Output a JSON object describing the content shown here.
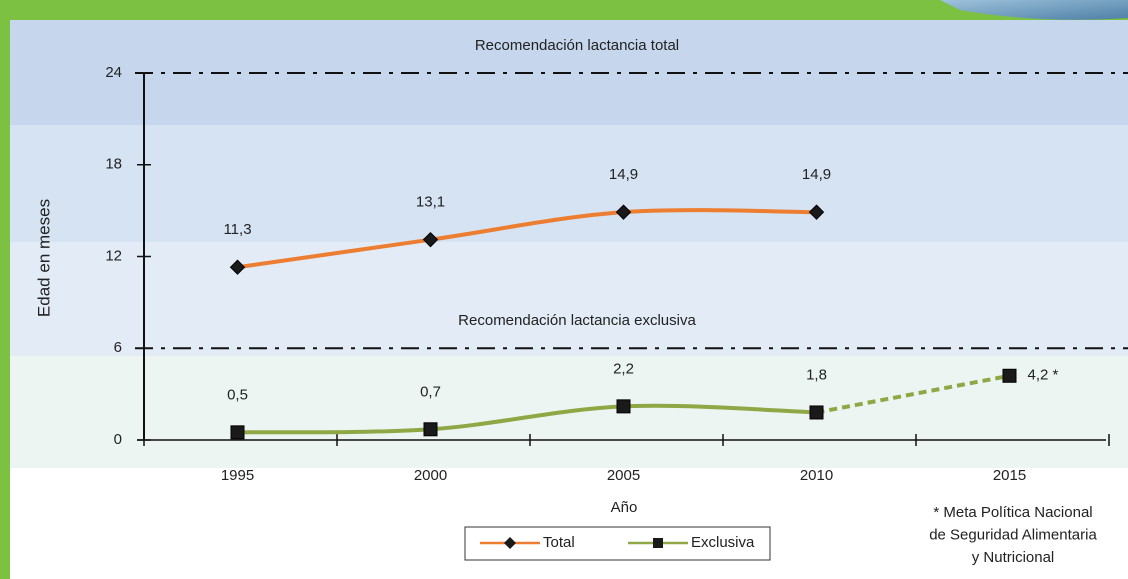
{
  "chart_data": {
    "type": "line",
    "y_label": "Edad en meses",
    "x_label": "Año",
    "categories": [
      "1995",
      "2000",
      "2005",
      "2010",
      "2015"
    ],
    "ylim": [
      0,
      24
    ],
    "yticks": [
      0,
      6,
      12,
      18,
      24
    ],
    "grid": false,
    "reference_lines": [
      {
        "value": 24,
        "label": "Recomendación lactancia total"
      },
      {
        "value": 6,
        "label": "Recomendación lactancia exclusiva"
      }
    ],
    "series": [
      {
        "name": "Total",
        "color": "#ed7d31",
        "marker": "diamond",
        "values": [
          11.3,
          13.1,
          14.9,
          14.9,
          null
        ],
        "value_labels": [
          "11,3",
          "13,1",
          "14,9",
          "14,9",
          null
        ],
        "projected": [
          false,
          false,
          false,
          false,
          false
        ]
      },
      {
        "name": "Exclusiva",
        "color": "#8fa845",
        "marker": "square",
        "values": [
          0.5,
          0.7,
          2.2,
          1.8,
          4.2
        ],
        "value_labels": [
          "0,5",
          "0,7",
          "2,2",
          "1,8",
          "4,2 *"
        ],
        "projected": [
          false,
          false,
          false,
          false,
          true
        ]
      }
    ],
    "footnote": [
      "* Meta Política Nacional",
      "de Seguridad Alimentaria",
      "y Nutricional"
    ]
  }
}
